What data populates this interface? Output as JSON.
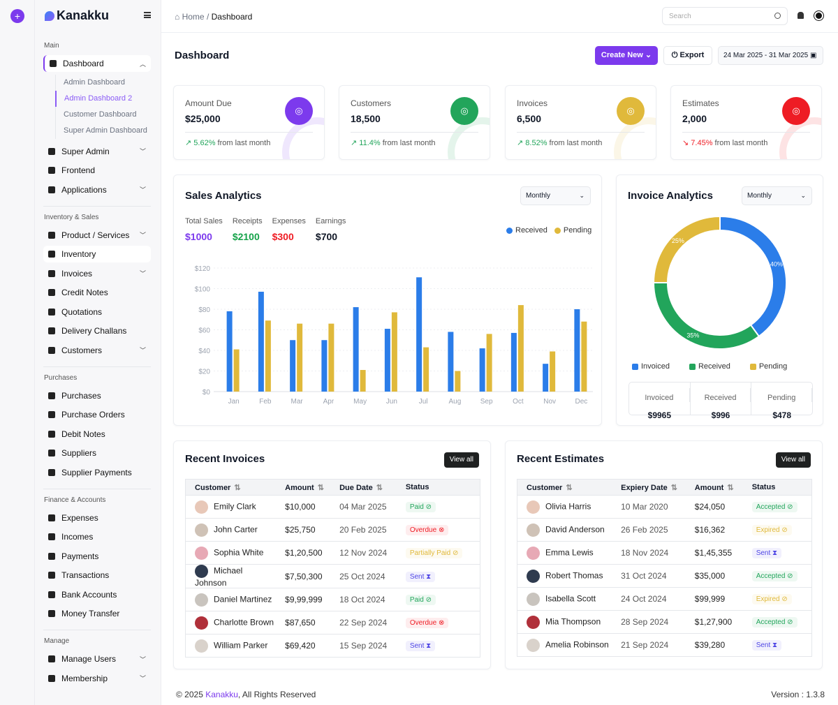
{
  "app": {
    "name": "Kanakku"
  },
  "sidebar": {
    "sections": [
      {
        "label": "Main",
        "items": [
          {
            "label": "Dashboard",
            "icon": "dashboard-icon",
            "expand": "up",
            "active": true,
            "sub": [
              "Admin Dashboard",
              "Admin Dashboard 2",
              "Customer Dashboard",
              "Super Admin Dashboard"
            ],
            "subActive": 1
          },
          {
            "label": "Super Admin",
            "icon": "user-shield-icon",
            "expand": "down"
          },
          {
            "label": "Frontend",
            "icon": "frontend-icon"
          },
          {
            "label": "Applications",
            "icon": "apps-icon",
            "expand": "down"
          }
        ]
      },
      {
        "label": "Inventory & Sales",
        "items": [
          {
            "label": "Product / Services",
            "icon": "box-icon",
            "expand": "down"
          },
          {
            "label": "Inventory",
            "icon": "inventory-icon",
            "highlight": true
          },
          {
            "label": "Invoices",
            "icon": "invoice-icon",
            "expand": "down"
          },
          {
            "label": "Credit Notes",
            "icon": "credit-note-icon"
          },
          {
            "label": "Quotations",
            "icon": "quotation-icon"
          },
          {
            "label": "Delivery Challans",
            "icon": "truck-icon"
          },
          {
            "label": "Customers",
            "icon": "users-icon",
            "expand": "down"
          }
        ]
      },
      {
        "label": "Purchases",
        "items": [
          {
            "label": "Purchases",
            "icon": "bag-icon"
          },
          {
            "label": "Purchase Orders",
            "icon": "order-icon"
          },
          {
            "label": "Debit Notes",
            "icon": "debit-note-icon"
          },
          {
            "label": "Suppliers",
            "icon": "supplier-icon"
          },
          {
            "label": "Supplier Payments",
            "icon": "payment-icon"
          }
        ]
      },
      {
        "label": "Finance & Accounts",
        "items": [
          {
            "label": "Expenses",
            "icon": "expense-icon"
          },
          {
            "label": "Incomes",
            "icon": "income-icon"
          },
          {
            "label": "Payments",
            "icon": "payments-icon"
          },
          {
            "label": "Transactions",
            "icon": "transactions-icon"
          },
          {
            "label": "Bank Accounts",
            "icon": "bank-icon"
          },
          {
            "label": "Money Transfer",
            "icon": "transfer-icon"
          }
        ]
      },
      {
        "label": "Manage",
        "items": [
          {
            "label": "Manage Users",
            "icon": "user-icon",
            "expand": "down"
          },
          {
            "label": "Membership",
            "icon": "star-icon",
            "expand": "down"
          }
        ]
      }
    ]
  },
  "header": {
    "breadcrumb_home": "Home",
    "breadcrumb_sep": "/",
    "breadcrumb_current": "Dashboard",
    "search_placeholder": "Search"
  },
  "page": {
    "title": "Dashboard",
    "create_label": "Create New",
    "export_label": "Export",
    "date_range": "24 Mar 2025 - 31 Mar 2025"
  },
  "kpis": [
    {
      "title": "Amount Due",
      "value": "$25,000",
      "change": "5.62%",
      "trend": "up",
      "suffix": "from last month",
      "color": "#7c3aed",
      "icon": "receipt-icon"
    },
    {
      "title": "Customers",
      "value": "18,500",
      "change": "11.4%",
      "trend": "up",
      "suffix": "from last month",
      "color": "#22a55b",
      "icon": "check-circle-icon"
    },
    {
      "title": "Invoices",
      "value": "6,500",
      "change": "8.52%",
      "trend": "up",
      "suffix": "from last month",
      "color": "#e0b93b",
      "icon": "hourglass-icon"
    },
    {
      "title": "Estimates",
      "value": "2,000",
      "change": "7.45%",
      "trend": "down",
      "suffix": "from last month",
      "color": "#ee1c24",
      "icon": "alert-icon"
    }
  ],
  "sales": {
    "title": "Sales Analytics",
    "period": "Monthly",
    "stats": [
      {
        "label": "Total Sales",
        "value": "$1000",
        "color": "#7c3aed"
      },
      {
        "label": "Receipts",
        "value": "$2100",
        "color": "#16a34a"
      },
      {
        "label": "Expenses",
        "value": "$300",
        "color": "#ef1c24"
      },
      {
        "label": "Earnings",
        "value": "$700",
        "color": "#111827"
      }
    ]
  },
  "invoice_analytics": {
    "title": "Invoice Analytics",
    "period": "Monthly",
    "summary": [
      {
        "label": "Invoiced",
        "value": "$9965"
      },
      {
        "label": "Received",
        "value": "$996"
      },
      {
        "label": "Pending",
        "value": "$478"
      }
    ]
  },
  "chart_data": [
    {
      "type": "bar",
      "categories": [
        "Jan",
        "Feb",
        "Mar",
        "Apr",
        "May",
        "Jun",
        "Jul",
        "Aug",
        "Sep",
        "Oct",
        "Nov",
        "Dec"
      ],
      "series": [
        {
          "name": "Received",
          "color": "#2b7de9",
          "values": [
            78,
            97,
            50,
            50,
            82,
            61,
            111,
            58,
            42,
            57,
            27,
            80
          ]
        },
        {
          "name": "Pending",
          "color": "#e0b93b",
          "values": [
            41,
            69,
            66,
            66,
            21,
            77,
            43,
            20,
            56,
            84,
            39,
            68
          ]
        }
      ],
      "yticks": [
        "$0",
        "$20",
        "$40",
        "$60",
        "$80",
        "$100",
        "$120"
      ],
      "ylim": [
        0,
        120
      ],
      "grid": true,
      "legend": "top-right"
    },
    {
      "type": "pie",
      "donut": true,
      "categories": [
        "Invoiced",
        "Received",
        "Pending"
      ],
      "values": [
        40,
        35,
        25
      ],
      "labels": [
        "40%",
        "35%",
        "25%"
      ],
      "colors": [
        "#2b7de9",
        "#22a55b",
        "#e0b93b"
      ],
      "legend": "bottom"
    }
  ],
  "recent_invoices": {
    "title": "Recent Invoices",
    "view_all": "View all",
    "columns": [
      "Customer",
      "Amount",
      "Due Date",
      "Status"
    ],
    "rows": [
      [
        "Emily Clark",
        "$10,000",
        "04 Mar 2025",
        "Paid"
      ],
      [
        "John Carter",
        "$25,750",
        "20 Feb 2025",
        "Overdue"
      ],
      [
        "Sophia White",
        "$1,20,500",
        "12 Nov 2024",
        "Partially Paid"
      ],
      [
        "Michael Johnson",
        "$7,50,300",
        "25 Oct 2024",
        "Sent"
      ],
      [
        "Daniel Martinez",
        "$9,99,999",
        "18 Oct 2024",
        "Paid"
      ],
      [
        "Charlotte Brown",
        "$87,650",
        "22 Sep 2024",
        "Overdue"
      ],
      [
        "William Parker",
        "$69,420",
        "15 Sep 2024",
        "Sent"
      ]
    ]
  },
  "recent_estimates": {
    "title": "Recent Estimates",
    "view_all": "View all",
    "columns": [
      "Customer",
      "Expiery Date",
      "Amount",
      "Status"
    ],
    "rows": [
      [
        "Olivia Harris",
        "10 Mar 2020",
        "$24,050",
        "Accepted"
      ],
      [
        "David Anderson",
        "26 Feb 2025",
        "$16,362",
        "Expired"
      ],
      [
        "Emma Lewis",
        "18 Nov 2024",
        "$1,45,355",
        "Sent"
      ],
      [
        "Robert Thomas",
        "31 Oct 2024",
        "$35,000",
        "Accepted"
      ],
      [
        "Isabella Scott",
        "24 Oct 2024",
        "$99,999",
        "Expired"
      ],
      [
        "Mia Thompson",
        "28 Sep 2024",
        "$1,27,900",
        "Accepted"
      ],
      [
        "Amelia Robinson",
        "21 Sep 2024",
        "$39,280",
        "Sent"
      ]
    ]
  },
  "status_colors": {
    "Paid": "#22a55b",
    "Accepted": "#22a55b",
    "Overdue": "#ef1c24",
    "Partially Paid": "#e0b93b",
    "Expired": "#e0b93b",
    "Sent": "#4f46e5"
  },
  "footer": {
    "copyright_prefix": "© 2025",
    "brand": "Kanakku",
    "copyright_suffix": ", All Rights Reserved",
    "version": "Version : 1.3.8"
  }
}
